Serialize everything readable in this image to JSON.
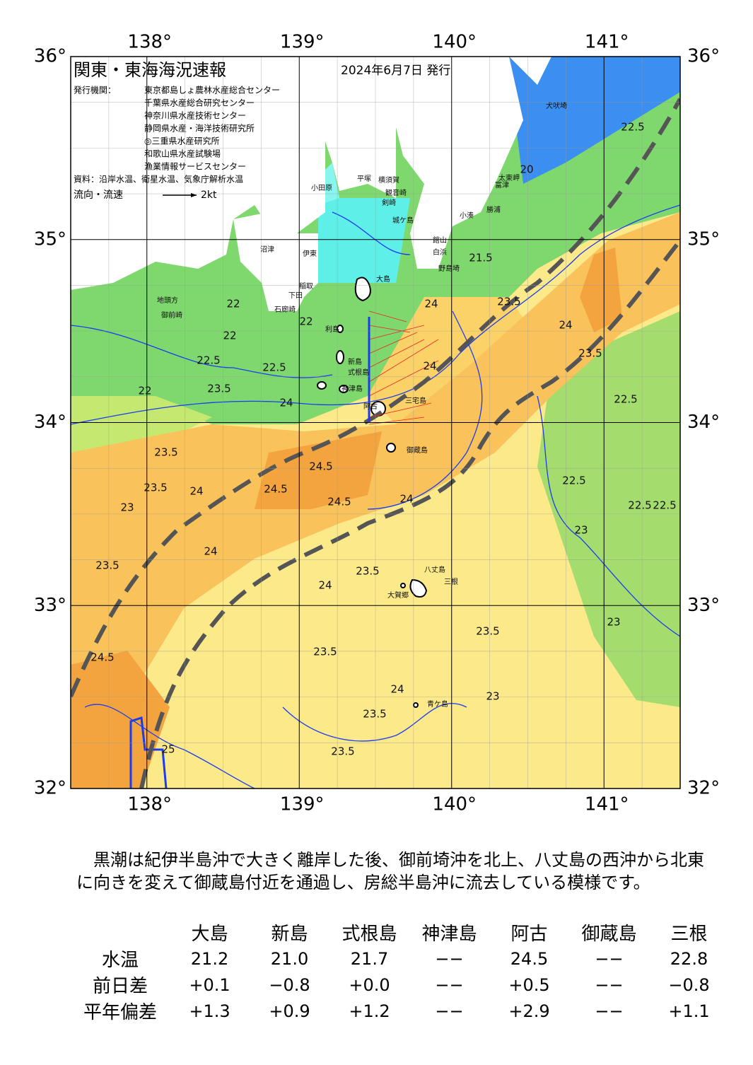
{
  "header": {
    "title": "関東・東海海況速報",
    "date": "2024年6月7日 発行",
    "agencies_label": "発行機関：",
    "agencies": [
      "東京都島しょ農林水産総合センター",
      "千葉県水産総合研究センター",
      "神奈川県水産技術センター",
      "静岡県水産・海洋技術研究所",
      "◎三重県水産研究所",
      "和歌山県水産試験場",
      "漁業情報サービスセンター"
    ],
    "source": "資料：沿岸水温、衛星水温、気象庁解析水温",
    "legend": "流向・流速",
    "legend_unit": "2kt"
  },
  "map": {
    "lonlim": [
      137.5,
      141.5
    ],
    "latlim": [
      32,
      36
    ],
    "lon_ticks": [
      {
        "value": 138,
        "label": "138°"
      },
      {
        "value": 139,
        "label": "139°"
      },
      {
        "value": 140,
        "label": "140°"
      },
      {
        "value": 141,
        "label": "141°"
      }
    ],
    "lat_ticks": [
      {
        "value": 32,
        "label": "32°"
      },
      {
        "value": 33,
        "label": "33°"
      },
      {
        "value": 34,
        "label": "34°"
      },
      {
        "value": 35,
        "label": "35°"
      },
      {
        "value": 36,
        "label": "36°"
      }
    ],
    "place_names": [
      "犬吠埼",
      "太東岬",
      "勝浦",
      "小湊",
      "富津",
      "館山",
      "白浜",
      "野島埼",
      "小田原",
      "平塚",
      "横須賀",
      "観音崎",
      "剣崎",
      "城ケ島",
      "沼津",
      "伊東",
      "稲取",
      "下田",
      "石廊崎",
      "御前崎",
      "地頭方",
      "大島",
      "利島",
      "新島",
      "式根島",
      "神津島",
      "三宅島",
      "阿古",
      "御蔵島",
      "八丈島",
      "三根",
      "大賀郷",
      "青ケ島"
    ],
    "contour_labels": [
      "22",
      "22",
      "22.5",
      "22",
      "23.5",
      "22.5",
      "24",
      "24.5",
      "24",
      "23.5",
      "23",
      "23.5",
      "24",
      "24.5",
      "24",
      "24.5",
      "23.5",
      "24",
      "23.5",
      "23.5",
      "24",
      "22.5",
      "22.5",
      "23.5",
      "24",
      "22.5",
      "22.5",
      "23",
      "23",
      "24.5",
      "23.5",
      "23.5",
      "24",
      "23.5",
      "23.5",
      "23",
      "25",
      "22.5",
      "21.5",
      "20",
      "24",
      "22"
    ]
  },
  "comment": "　黒潮は紀伊半島沖で大きく離岸した後、御前埼沖を北上、八丈島の西沖から北東に向きを変えて御蔵島付近を通過し、房総半島沖に流去している模様です。",
  "table": {
    "columns": [
      "大島",
      "新島",
      "式根島",
      "神津島",
      "阿古",
      "御蔵島",
      "三根"
    ],
    "rows": [
      {
        "label": "水温",
        "values": [
          "21.2",
          "21.0",
          "21.7",
          "−−",
          "24.5",
          "−−",
          "22.8"
        ]
      },
      {
        "label": "前日差",
        "values": [
          "+0.1",
          "−0.8",
          "+0.0",
          "−−",
          "+0.5",
          "−−",
          "−0.8"
        ]
      },
      {
        "label": "平年偏差",
        "values": [
          "+1.3",
          "+0.9",
          "+1.2",
          "−−",
          "+2.9",
          "−−",
          "+1.1"
        ]
      }
    ]
  }
}
